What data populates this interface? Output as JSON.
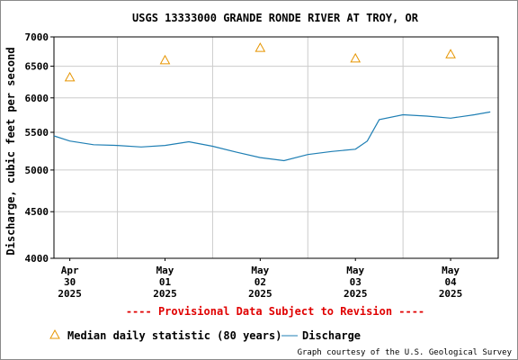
{
  "provisional_notice": "---- Provisional Data Subject to Revision ----",
  "credit": "Graph courtesy of the U.S. Geological Survey",
  "legend": {
    "median_label": "Median daily statistic (80 years)",
    "discharge_label": "Discharge"
  },
  "colors": {
    "discharge": "#1f7fb4",
    "median": "#e69500",
    "provisional": "#e00000",
    "grid": "#cccccc"
  },
  "chart_data": {
    "type": "line",
    "title": "USGS 13333000 GRANDE RONDE RIVER AT TROY, OR",
    "ylabel": "Discharge, cubic feet per second",
    "xlabel": "",
    "y_scale": "log",
    "ylim": [
      4000,
      7000
    ],
    "yticks": [
      4000,
      4500,
      5000,
      5500,
      6000,
      6500,
      7000
    ],
    "xlim": [
      "2025-04-29T20:00",
      "2025-05-04T12:00"
    ],
    "xticks": [
      {
        "x": "2025-04-30",
        "label": [
          "Apr",
          "30",
          "2025"
        ]
      },
      {
        "x": "2025-05-01",
        "label": [
          "May",
          "01",
          "2025"
        ]
      },
      {
        "x": "2025-05-02",
        "label": [
          "May",
          "02",
          "2025"
        ]
      },
      {
        "x": "2025-05-03",
        "label": [
          "May",
          "03",
          "2025"
        ]
      },
      {
        "x": "2025-05-04",
        "label": [
          "May",
          "04",
          "2025"
        ]
      }
    ],
    "grid": true,
    "legend_position": "bottom",
    "series": [
      {
        "name": "Median daily statistic (80 years)",
        "marker": "triangle",
        "x": [
          "2025-04-30",
          "2025-05-01",
          "2025-05-02",
          "2025-05-03",
          "2025-05-04"
        ],
        "y": [
          6320,
          6600,
          6810,
          6630,
          6700
        ]
      },
      {
        "name": "Discharge",
        "marker": "line",
        "x": [
          "2025-04-29T20:00",
          "2025-04-30T00:00",
          "2025-04-30T06:00",
          "2025-04-30T12:00",
          "2025-04-30T18:00",
          "2025-05-01T00:00",
          "2025-05-01T06:00",
          "2025-05-01T12:00",
          "2025-05-01T18:00",
          "2025-05-02T00:00",
          "2025-05-02T06:00",
          "2025-05-02T12:00",
          "2025-05-02T18:00",
          "2025-05-03T00:00",
          "2025-05-03T03:00",
          "2025-05-03T06:00",
          "2025-05-03T12:00",
          "2025-05-03T18:00",
          "2025-05-04T00:00",
          "2025-05-04T06:00",
          "2025-05-04T10:00"
        ],
        "y": [
          5450,
          5380,
          5330,
          5320,
          5300,
          5320,
          5370,
          5310,
          5230,
          5160,
          5120,
          5200,
          5240,
          5270,
          5380,
          5680,
          5750,
          5730,
          5700,
          5750,
          5790
        ]
      }
    ]
  }
}
